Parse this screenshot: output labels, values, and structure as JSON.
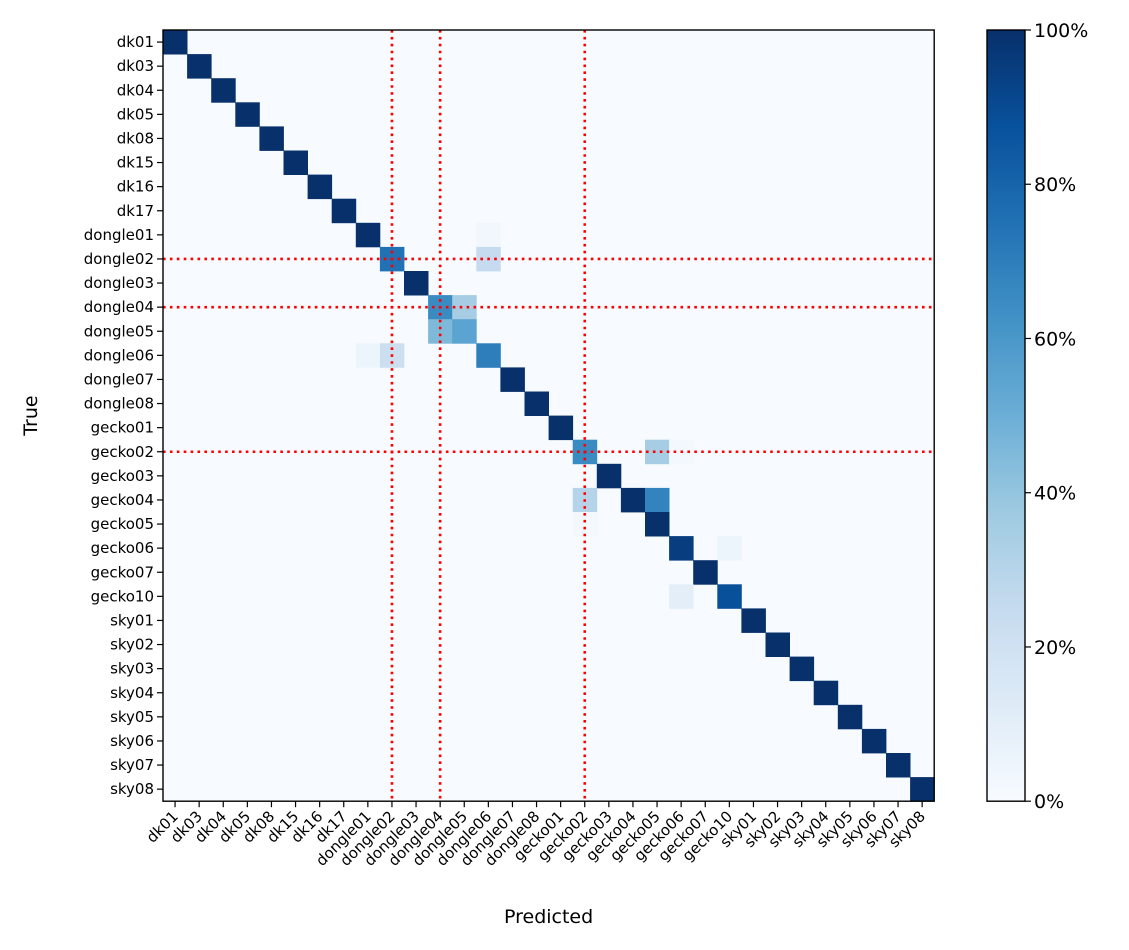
{
  "chart_data": {
    "type": "heatmap",
    "title": "",
    "xlabel": "Predicted",
    "ylabel": "True",
    "categories": [
      "dk01",
      "dk03",
      "dk04",
      "dk05",
      "dk08",
      "dk15",
      "dk16",
      "dk17",
      "dongle01",
      "dongle02",
      "dongle03",
      "dongle04",
      "dongle05",
      "dongle06",
      "dongle07",
      "dongle08",
      "gecko01",
      "gecko02",
      "gecko03",
      "gecko04",
      "gecko05",
      "gecko06",
      "gecko07",
      "gecko10",
      "sky01",
      "sky02",
      "sky03",
      "sky04",
      "sky05",
      "sky06",
      "sky07",
      "sky08"
    ],
    "colormap": "Blues",
    "value_range": [
      0,
      100
    ],
    "unit": "%",
    "colorbar_ticks": [
      "0%",
      "20%",
      "40%",
      "60%",
      "80%",
      "100%"
    ],
    "colorbar_tick_values": [
      0,
      20,
      40,
      60,
      80,
      100
    ],
    "offdiagonal": [
      {
        "row": "dongle01",
        "col": "dongle06",
        "value": 3
      },
      {
        "row": "dongle02",
        "col": "dongle02",
        "value": 75
      },
      {
        "row": "dongle02",
        "col": "dongle06",
        "value": 25
      },
      {
        "row": "dongle04",
        "col": "dongle04",
        "value": 65
      },
      {
        "row": "dongle04",
        "col": "dongle05",
        "value": 35
      },
      {
        "row": "dongle05",
        "col": "dongle04",
        "value": 45
      },
      {
        "row": "dongle05",
        "col": "dongle05",
        "value": 55
      },
      {
        "row": "dongle06",
        "col": "dongle01",
        "value": 5
      },
      {
        "row": "dongle06",
        "col": "dongle02",
        "value": 22
      },
      {
        "row": "dongle06",
        "col": "dongle06",
        "value": 70
      },
      {
        "row": "gecko02",
        "col": "gecko02",
        "value": 65
      },
      {
        "row": "gecko02",
        "col": "gecko05",
        "value": 35
      },
      {
        "row": "gecko02",
        "col": "gecko06",
        "value": 2
      },
      {
        "row": "gecko04",
        "col": "gecko02",
        "value": 30
      },
      {
        "row": "gecko04",
        "col": "gecko05",
        "value": 68
      },
      {
        "row": "gecko05",
        "col": "gecko02",
        "value": 2
      },
      {
        "row": "gecko06",
        "col": "gecko06",
        "value": 95
      },
      {
        "row": "gecko06",
        "col": "gecko10",
        "value": 5
      },
      {
        "row": "gecko10",
        "col": "gecko06",
        "value": 10
      },
      {
        "row": "gecko10",
        "col": "gecko10",
        "value": 88
      }
    ],
    "diagonal_default": 100,
    "reference_lines": {
      "color": "#ff0000",
      "style": "dotted",
      "vertical_at": [
        "dongle02",
        "dongle04",
        "gecko02"
      ],
      "horizontal_at": [
        "dongle02",
        "dongle04",
        "gecko02"
      ]
    },
    "grid": false
  }
}
